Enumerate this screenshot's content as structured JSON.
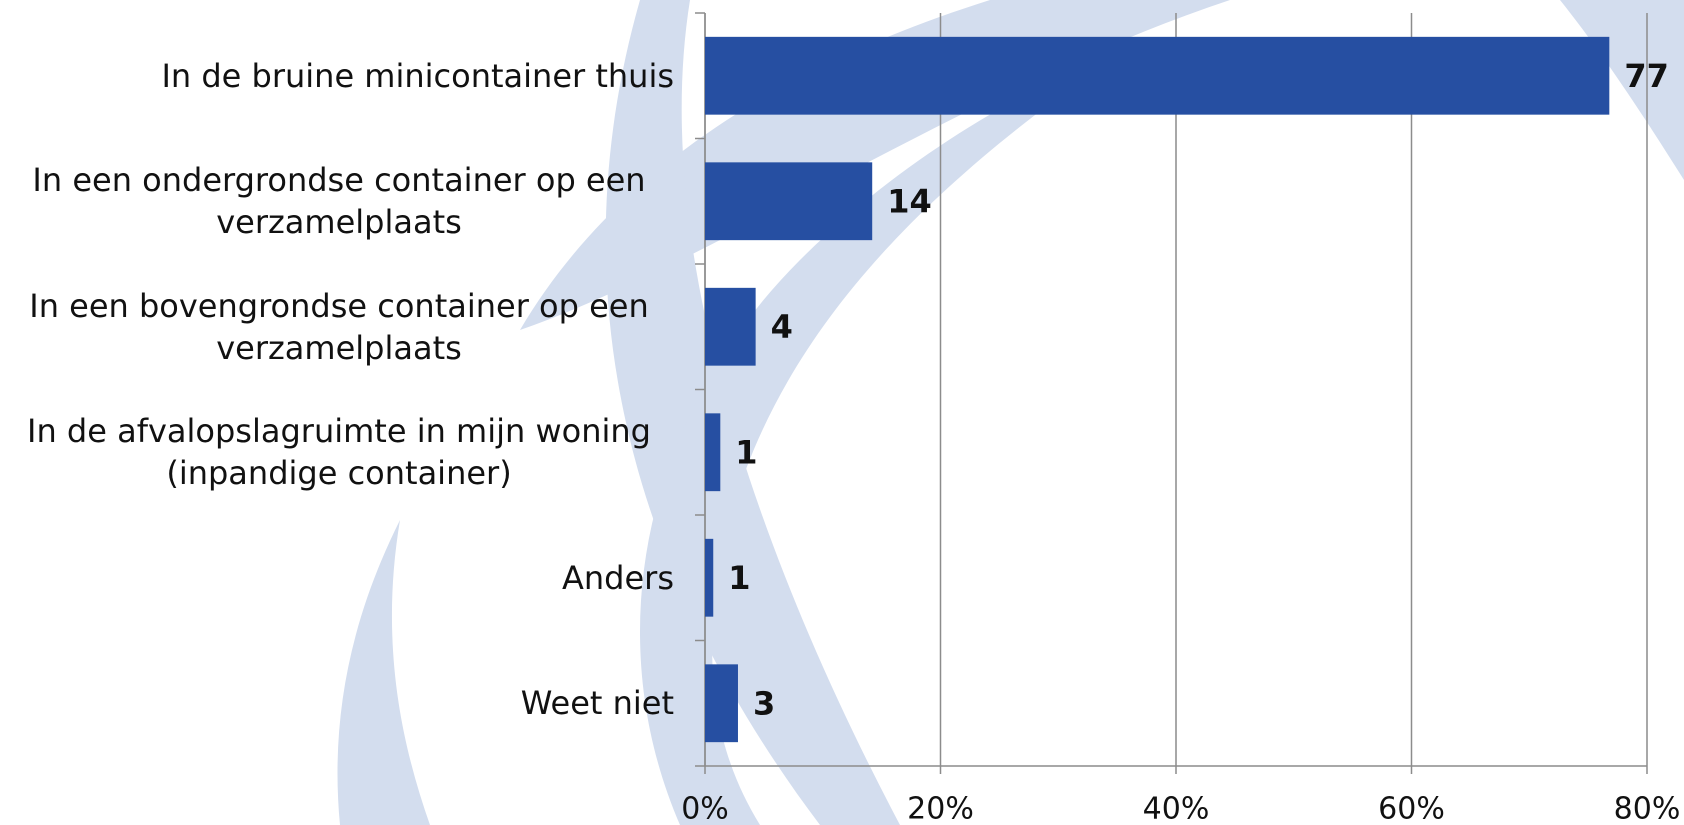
{
  "chart_data": {
    "type": "bar",
    "orientation": "horizontal",
    "categories": [
      "In de bruine minicontainer thuis",
      "In een ondergrondse container op een verzamelplaats",
      "In een bovengrondse container op een verzamelplaats",
      "In de afvalopslagruimte in mijn woning (inpandige container)",
      "Anders",
      "Weet niet"
    ],
    "values": [
      76.8,
      14.2,
      4.3,
      1.3,
      0.7,
      2.8
    ],
    "value_labels": [
      "77",
      "14",
      "4",
      "1",
      "1",
      "3"
    ],
    "color": "#264fa2",
    "xlim": [
      0,
      80
    ],
    "xticks": [
      {
        "value": 0,
        "label": "0%"
      },
      {
        "value": 20,
        "label": "20%"
      },
      {
        "value": 40,
        "label": "40%"
      },
      {
        "value": 60,
        "label": "60%"
      },
      {
        "value": 80,
        "label": "80%"
      }
    ],
    "grid": true
  }
}
